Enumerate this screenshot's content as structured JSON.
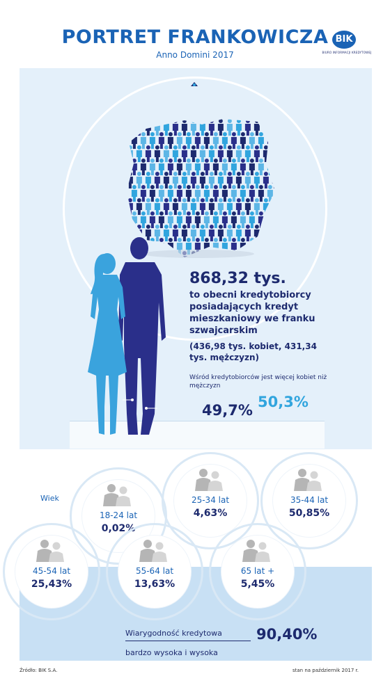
{
  "header": {
    "title": "PORTRET FRANKOWICZA",
    "subtitle": "Anno Domini 2017",
    "logo_text": "BIK",
    "logo_subtext": "BIURO INFORMACJI KREDYTOWEJ"
  },
  "summary": {
    "value": "868,32 tys.",
    "description": "to obecni kredytobiorcy posiadających kredyt mieszkaniowy we franku szwajcarskim",
    "split": "(436,98 tys. kobiet, 431,34 tys. mężczyzn)",
    "gender_note": "Wśród kredytobiorców jest więcej kobiet niż mężczyzn",
    "men_pct": "49,7%",
    "women_pct": "50,3%"
  },
  "age": {
    "label": "Wiek",
    "groups": [
      {
        "label": "18-24 lat",
        "value": "0,02%"
      },
      {
        "label": "25-34 lat",
        "value": "4,63%"
      },
      {
        "label": "35-44 lat",
        "value": "50,85%"
      },
      {
        "label": "45-54 lat",
        "value": "25,43%"
      },
      {
        "label": "55-64 lat",
        "value": "13,63%"
      },
      {
        "label": "65 lat +",
        "value": "5,45%"
      }
    ]
  },
  "credit": {
    "line1": "Wiarygodność kredytowa",
    "line2": "bardzo wysoka i wysoka",
    "value": "90,40%"
  },
  "footer": {
    "source": "Źródło: BIK S.A.",
    "date": "stan na październik 2017 r."
  },
  "colors": {
    "navy": "#1d2a6e",
    "blue": "#1a63b5",
    "light_blue": "#31a5de",
    "panel": "#e4f0fa",
    "band": "#c8e0f4",
    "gray": "#b5b5b5"
  },
  "icons": [
    "poland-crowd-map",
    "woman-silhouette",
    "man-silhouette",
    "couple-icon"
  ]
}
